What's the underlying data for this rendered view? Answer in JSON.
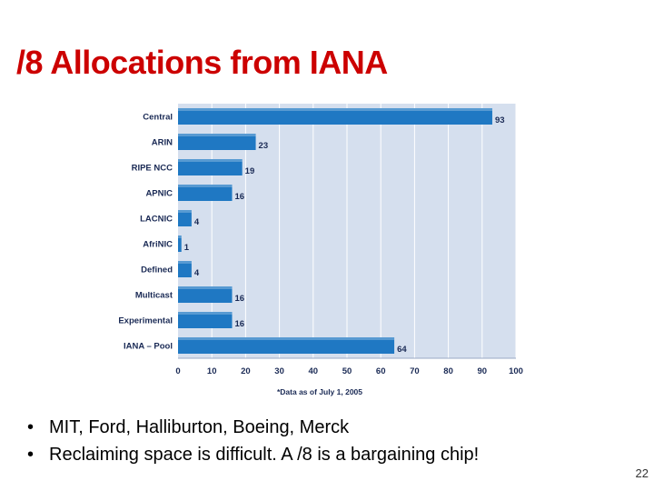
{
  "slide": {
    "title": "/8 Allocations from IANA",
    "bullets": [
      "MIT, Ford, Halliburton, Boeing, Merck",
      "Reclaiming space is difficult. A /8 is a bargaining chip!"
    ],
    "bullet_glyph": "•",
    "page_number": "22"
  },
  "chart_data": {
    "type": "bar",
    "orientation": "horizontal",
    "categories": [
      "Central",
      "ARIN",
      "RIPE NCC",
      "APNIC",
      "LACNIC",
      "AfriNIC",
      "Defined",
      "Multicast",
      "Experimental",
      "IANA – Pool"
    ],
    "values": [
      93,
      23,
      19,
      16,
      4,
      1,
      4,
      16,
      16,
      64
    ],
    "value_labels": [
      "93",
      "23",
      "19",
      "16",
      "4",
      "1",
      "4",
      "16",
      "16",
      "64"
    ],
    "xlim": [
      0,
      100
    ],
    "xticks": [
      0,
      10,
      20,
      30,
      40,
      50,
      60,
      70,
      80,
      90,
      100
    ],
    "grid": true,
    "note": "*Data as of July 1, 2005",
    "colors": {
      "plot_background": "#d5dfee",
      "bar": "#1f78c3",
      "gridline": "#ffffff",
      "text": "#1a2a55"
    }
  }
}
